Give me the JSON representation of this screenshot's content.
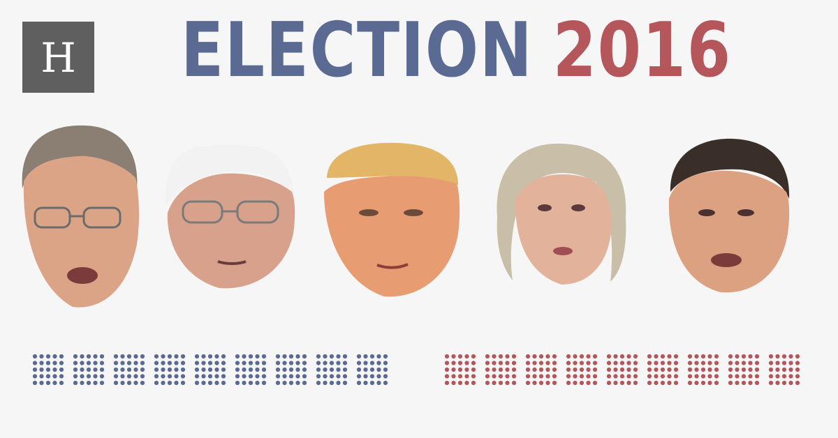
{
  "header": {
    "logo_letter": "H",
    "title_word": "ELECTION",
    "title_year": "2016"
  },
  "colors": {
    "background": "#f6f6f6",
    "logo_bg": "#5f5f5f",
    "democratic_blue": "#5a6a93",
    "republican_red": "#b5575a"
  },
  "delegate_grids": [
    {
      "party": "democratic",
      "color": "#5a6a93",
      "blocks": 9,
      "rows": 5,
      "cols": 5
    },
    {
      "party": "republican",
      "color": "#b5575a",
      "blocks": 9,
      "rows": 5,
      "cols": 5
    }
  ],
  "portraits": [
    {
      "icon": "candidate-face-1-portrait",
      "hair": "#8b7f73",
      "skin": "#dba487"
    },
    {
      "icon": "candidate-face-2-portrait",
      "hair": "#f2f2f2",
      "skin": "#d7a18b"
    },
    {
      "icon": "candidate-face-3-portrait",
      "hair": "#e3b567",
      "skin": "#e89c72"
    },
    {
      "icon": "candidate-face-4-portrait",
      "hair": "#c9bfa8",
      "skin": "#e3b29b"
    },
    {
      "icon": "candidate-face-5-portrait",
      "hair": "#3a2e28",
      "skin": "#dba181"
    }
  ]
}
